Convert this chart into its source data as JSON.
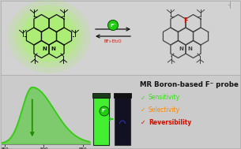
{
  "bg_color": "#c8c8c8",
  "title_text": "MR Boron-based F⁻ probe",
  "title_fontsize": 6.2,
  "check_items": [
    "Sensitivity",
    "Selectivity",
    "Reversibility"
  ],
  "check_colors": [
    "#33dd11",
    "#ff8800",
    "#cc1100"
  ],
  "check_bold": [
    false,
    false,
    true
  ],
  "spectrum_color": "#33cc11",
  "glow_color_outer": "#99ff44",
  "glow_color_inner": "#55ee22",
  "mol_line_color": "#111111",
  "mol_line_color_right": "#444444",
  "f_circle_color": "#22cc11",
  "cuvette_green": "#44ee33",
  "cuvette_dark": "#111122",
  "panel_top_color": "#d2d2d2",
  "panel_bot_color": "#cbcbcb"
}
